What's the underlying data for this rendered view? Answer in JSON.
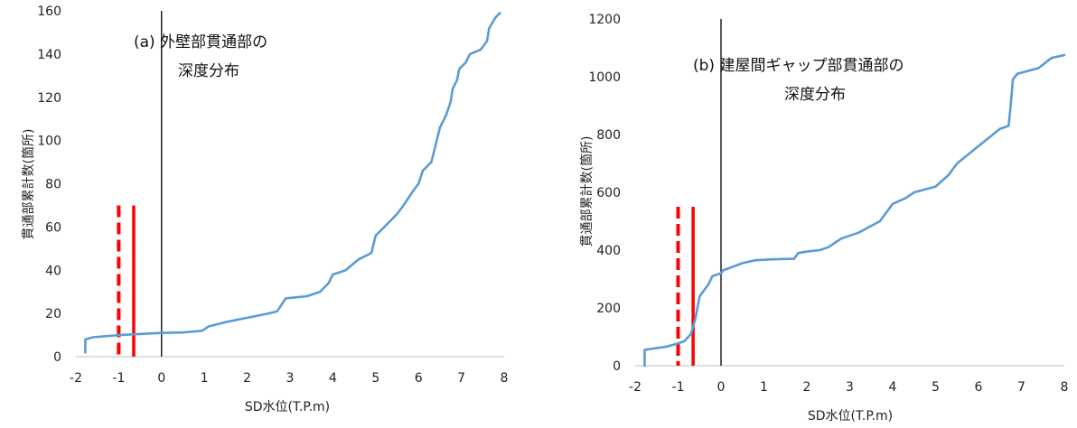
{
  "chart_data": [
    {
      "type": "line",
      "annotation": [
        "(a) 外壁部貫通部の",
        "深度分布"
      ],
      "xlabel": "SD水位(T.P.m)",
      "ylabel": "貫通部累計数(箇所)",
      "xlim": [
        -2,
        8
      ],
      "ylim": [
        0,
        160
      ],
      "xticks": [
        -2,
        -1,
        0,
        1,
        2,
        3,
        4,
        5,
        6,
        7,
        8
      ],
      "yticks": [
        0,
        20,
        40,
        60,
        80,
        100,
        120,
        140,
        160
      ],
      "grid": false,
      "series": [
        {
          "color": "#5b9bd5",
          "points": [
            [
              -1.78,
              2
            ],
            [
              -1.78,
              8
            ],
            [
              -1.6,
              9
            ],
            [
              -1.0,
              10
            ],
            [
              0.0,
              11
            ],
            [
              0.5,
              11.2
            ],
            [
              0.95,
              12
            ],
            [
              1.1,
              14
            ],
            [
              1.5,
              16
            ],
            [
              2.0,
              18
            ],
            [
              2.5,
              20
            ],
            [
              2.7,
              21
            ],
            [
              2.8,
              24
            ],
            [
              2.9,
              27
            ],
            [
              3.4,
              28
            ],
            [
              3.7,
              30
            ],
            [
              3.8,
              32
            ],
            [
              3.9,
              34
            ],
            [
              4.0,
              38
            ],
            [
              4.3,
              40
            ],
            [
              4.6,
              45
            ],
            [
              4.9,
              48
            ],
            [
              4.95,
              52
            ],
            [
              5.0,
              56
            ],
            [
              5.2,
              60
            ],
            [
              5.5,
              66
            ],
            [
              5.65,
              70
            ],
            [
              5.85,
              76
            ],
            [
              6.0,
              80
            ],
            [
              6.1,
              86
            ],
            [
              6.3,
              90
            ],
            [
              6.4,
              98
            ],
            [
              6.5,
              106
            ],
            [
              6.65,
              112
            ],
            [
              6.75,
              118
            ],
            [
              6.8,
              124
            ],
            [
              6.9,
              128
            ],
            [
              6.95,
              133
            ],
            [
              7.1,
              136
            ],
            [
              7.2,
              140
            ],
            [
              7.45,
              142
            ],
            [
              7.6,
              146
            ],
            [
              7.65,
              152
            ],
            [
              7.8,
              157
            ],
            [
              7.9,
              159
            ]
          ]
        }
      ],
      "markers": [
        {
          "x": -1.0,
          "y_top": 70,
          "style": "dashed",
          "color": "#ff0000"
        },
        {
          "x": -0.65,
          "y_top": 70,
          "style": "solid",
          "color": "#ff0000"
        },
        {
          "x": 0,
          "style": "solid",
          "color": "#000000"
        }
      ]
    },
    {
      "type": "line",
      "annotation": [
        "(b) 建屋間ギャップ部貫通部の",
        "深度分布"
      ],
      "xlabel": "SD水位(T.P.m)",
      "ylabel": "貫通部累計数(箇所)",
      "xlim": [
        -2,
        8
      ],
      "ylim": [
        0,
        1200
      ],
      "xticks": [
        -2,
        -1,
        0,
        1,
        2,
        3,
        4,
        5,
        6,
        7,
        8
      ],
      "yticks": [
        0,
        200,
        400,
        600,
        800,
        1000,
        1200
      ],
      "grid": false,
      "series": [
        {
          "color": "#5b9bd5",
          "points": [
            [
              -1.78,
              0
            ],
            [
              -1.78,
              55
            ],
            [
              -1.3,
              65
            ],
            [
              -1.05,
              75
            ],
            [
              -0.85,
              85
            ],
            [
              -0.7,
              110
            ],
            [
              -0.6,
              160
            ],
            [
              -0.5,
              240
            ],
            [
              -0.3,
              280
            ],
            [
              -0.2,
              310
            ],
            [
              0.0,
              320
            ],
            [
              0.05,
              330
            ],
            [
              0.5,
              355
            ],
            [
              0.8,
              365
            ],
            [
              1.2,
              368
            ],
            [
              1.7,
              370
            ],
            [
              1.8,
              390
            ],
            [
              2.0,
              395
            ],
            [
              2.3,
              400
            ],
            [
              2.5,
              410
            ],
            [
              2.8,
              440
            ],
            [
              3.2,
              460
            ],
            [
              3.7,
              500
            ],
            [
              3.9,
              540
            ],
            [
              4.0,
              560
            ],
            [
              4.3,
              580
            ],
            [
              4.5,
              600
            ],
            [
              5.0,
              620
            ],
            [
              5.3,
              660
            ],
            [
              5.5,
              700
            ],
            [
              6.0,
              760
            ],
            [
              6.5,
              820
            ],
            [
              6.7,
              830
            ],
            [
              6.75,
              900
            ],
            [
              6.8,
              990
            ],
            [
              6.9,
              1010
            ],
            [
              7.4,
              1030
            ],
            [
              7.7,
              1065
            ],
            [
              8.0,
              1075
            ]
          ]
        }
      ],
      "markers": [
        {
          "x": -1.0,
          "y_top": 550,
          "style": "dashed",
          "color": "#ff0000"
        },
        {
          "x": -0.65,
          "y_top": 550,
          "style": "solid",
          "color": "#ff0000"
        },
        {
          "x": 0,
          "style": "solid",
          "color": "#000000"
        }
      ]
    }
  ]
}
